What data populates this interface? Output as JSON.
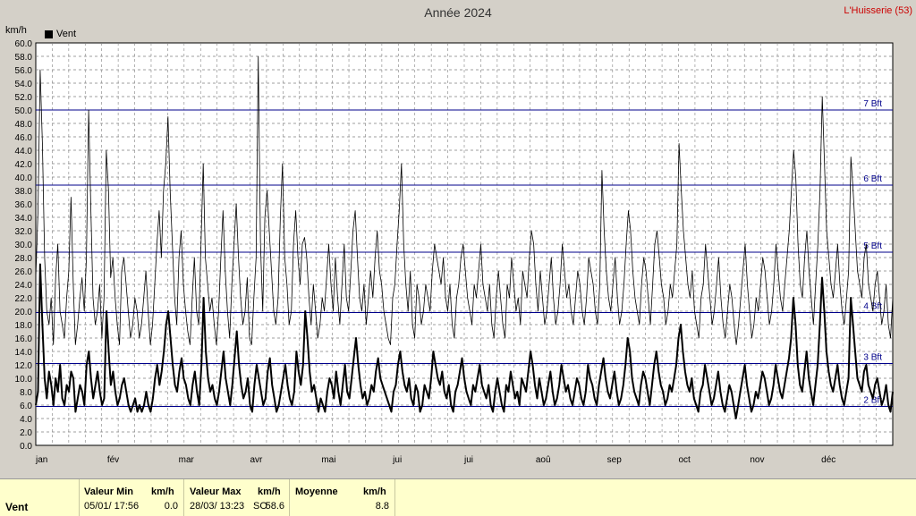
{
  "page": {
    "title": "Année 2024",
    "station": "L'Huisserie (53)",
    "legend_label": "Vent"
  },
  "chart_data": {
    "type": "line",
    "title": "Année 2024",
    "ylabel": "km/h",
    "ylim": [
      0,
      60
    ],
    "y_ticks": [
      "0.0",
      "2.0",
      "4.0",
      "6.0",
      "8.0",
      "10.0",
      "12.0",
      "14.0",
      "16.0",
      "18.0",
      "20.0",
      "22.0",
      "24.0",
      "26.0",
      "28.0",
      "30.0",
      "32.0",
      "34.0",
      "36.0",
      "38.0",
      "40.0",
      "42.0",
      "44.0",
      "46.0",
      "48.0",
      "50.0",
      "52.0",
      "54.0",
      "56.0",
      "58.0",
      "60.0"
    ],
    "month_labels": [
      "jan",
      "fév",
      "mar",
      "avr",
      "mai",
      "jui",
      "jui",
      "aoû",
      "sep",
      "oct",
      "nov",
      "déc"
    ],
    "grid": true,
    "beaufort_lines": [
      {
        "label": "2 Bft",
        "value": 5.8
      },
      {
        "label": "3 Bft",
        "value": 12.2
      },
      {
        "label": "4 Bft",
        "value": 19.8
      },
      {
        "label": "5 Bft",
        "value": 28.8
      },
      {
        "label": "6 Bft",
        "value": 38.8
      },
      {
        "label": "7 Bft",
        "value": 50.0
      }
    ],
    "colors": {
      "plot_bg": "#ffffff",
      "grid": "#808080",
      "beaufort": "#00008b",
      "series": "#000000"
    },
    "series": [
      {
        "name": "Vent",
        "values": [
          6,
          8,
          27,
          18,
          10,
          7,
          11,
          9,
          6,
          10,
          8,
          12,
          7,
          6,
          9,
          8,
          11,
          10,
          5,
          7,
          9,
          8,
          6,
          12,
          14,
          10,
          7,
          9,
          11,
          8,
          6,
          7,
          20,
          14,
          9,
          11,
          8,
          6,
          7,
          9,
          10,
          8,
          6,
          5,
          6,
          7,
          5,
          6,
          5,
          6,
          8,
          6,
          5,
          7,
          10,
          12,
          9,
          11,
          14,
          18,
          20,
          16,
          12,
          9,
          8,
          11,
          13,
          10,
          9,
          7,
          6,
          9,
          11,
          8,
          6,
          12,
          22,
          14,
          10,
          8,
          9,
          7,
          6,
          8,
          11,
          14,
          10,
          8,
          6,
          9,
          13,
          17,
          12,
          9,
          7,
          8,
          10,
          6,
          5,
          9,
          12,
          10,
          8,
          6,
          7,
          11,
          13,
          9,
          7,
          5,
          6,
          8,
          10,
          12,
          9,
          7,
          6,
          8,
          14,
          11,
          9,
          12,
          20,
          16,
          11,
          8,
          9,
          7,
          5,
          7,
          6,
          5,
          8,
          10,
          9,
          7,
          11,
          8,
          6,
          9,
          12,
          8,
          7,
          10,
          13,
          16,
          12,
          9,
          7,
          8,
          6,
          7,
          9,
          8,
          11,
          13,
          10,
          9,
          8,
          7,
          6,
          5,
          8,
          9,
          12,
          14,
          11,
          9,
          8,
          10,
          7,
          6,
          9,
          8,
          5,
          6,
          9,
          8,
          7,
          10,
          14,
          12,
          10,
          9,
          11,
          8,
          7,
          9,
          6,
          5,
          8,
          9,
          11,
          13,
          10,
          8,
          7,
          6,
          9,
          8,
          10,
          12,
          9,
          8,
          7,
          9,
          6,
          5,
          8,
          10,
          8,
          6,
          5,
          9,
          8,
          11,
          9,
          7,
          8,
          6,
          10,
          9,
          8,
          11,
          14,
          12,
          9,
          7,
          10,
          8,
          6,
          7,
          9,
          11,
          8,
          6,
          7,
          9,
          12,
          10,
          8,
          9,
          7,
          6,
          8,
          10,
          9,
          7,
          6,
          8,
          12,
          10,
          9,
          7,
          6,
          9,
          11,
          13,
          10,
          8,
          7,
          9,
          11,
          8,
          6,
          7,
          9,
          12,
          16,
          14,
          10,
          8,
          7,
          6,
          9,
          11,
          10,
          8,
          6,
          9,
          12,
          14,
          11,
          9,
          8,
          6,
          7,
          9,
          8,
          10,
          12,
          16,
          18,
          14,
          11,
          9,
          8,
          10,
          7,
          6,
          5,
          8,
          9,
          12,
          10,
          8,
          6,
          7,
          9,
          11,
          8,
          6,
          5,
          7,
          9,
          8,
          6,
          4,
          6,
          8,
          10,
          12,
          9,
          7,
          5,
          6,
          8,
          7,
          9,
          11,
          10,
          8,
          6,
          7,
          9,
          12,
          10,
          8,
          7,
          9,
          11,
          13,
          16,
          22,
          18,
          12,
          9,
          8,
          11,
          14,
          10,
          8,
          6,
          9,
          12,
          18,
          25,
          20,
          14,
          11,
          9,
          8,
          10,
          12,
          9,
          7,
          6,
          8,
          10,
          22,
          18,
          14,
          10,
          9,
          8,
          11,
          12,
          9,
          8,
          7,
          9,
          10,
          8,
          6,
          7,
          9,
          6,
          5,
          8
        ]
      }
    ],
    "peak_series": [
      {
        "name": "",
        "values": [
          25,
          35,
          56,
          45,
          28,
          20,
          18,
          22,
          15,
          25,
          30,
          20,
          18,
          16,
          22,
          26,
          37,
          24,
          15,
          18,
          22,
          25,
          20,
          28,
          50,
          35,
          22,
          18,
          20,
          24,
          16,
          22,
          44,
          38,
          25,
          28,
          22,
          18,
          15,
          26,
          28,
          24,
          20,
          16,
          18,
          22,
          20,
          16,
          18,
          22,
          26,
          20,
          15,
          18,
          24,
          30,
          35,
          28,
          38,
          42,
          49,
          38,
          30,
          22,
          18,
          28,
          32,
          24,
          20,
          17,
          15,
          22,
          28,
          20,
          18,
          30,
          42,
          28,
          24,
          20,
          22,
          18,
          15,
          20,
          28,
          35,
          26,
          20,
          16,
          24,
          30,
          36,
          28,
          22,
          18,
          20,
          25,
          16,
          15,
          22,
          28,
          58,
          30,
          20,
          34,
          38,
          32,
          26,
          20,
          18,
          22,
          34,
          42,
          28,
          24,
          18,
          20,
          30,
          35,
          28,
          24,
          30,
          31,
          28,
          22,
          18,
          24,
          20,
          16,
          18,
          22,
          20,
          25,
          30,
          24,
          20,
          28,
          22,
          18,
          24,
          30,
          22,
          20,
          26,
          32,
          35,
          28,
          22,
          20,
          24,
          18,
          22,
          26,
          22,
          28,
          32,
          26,
          24,
          20,
          18,
          16,
          15,
          22,
          24,
          30,
          35,
          42,
          30,
          24,
          20,
          26,
          18,
          16,
          24,
          22,
          18,
          20,
          24,
          22,
          20,
          26,
          30,
          28,
          26,
          24,
          28,
          22,
          20,
          24,
          18,
          16,
          22,
          24,
          28,
          30,
          26,
          22,
          20,
          18,
          24,
          22,
          26,
          30,
          24,
          22,
          20,
          24,
          18,
          16,
          22,
          26,
          22,
          18,
          16,
          24,
          22,
          28,
          24,
          20,
          22,
          18,
          26,
          24,
          22,
          28,
          32,
          30,
          24,
          20,
          26,
          22,
          18,
          20,
          24,
          28,
          22,
          18,
          20,
          24,
          30,
          26,
          22,
          24,
          20,
          18,
          22,
          26,
          24,
          20,
          18,
          22,
          28,
          26,
          24,
          20,
          18,
          24,
          41,
          32,
          26,
          22,
          20,
          24,
          28,
          22,
          18,
          20,
          24,
          30,
          35,
          32,
          26,
          22,
          20,
          18,
          24,
          28,
          26,
          22,
          18,
          24,
          30,
          32,
          28,
          24,
          22,
          18,
          20,
          24,
          22,
          26,
          30,
          45,
          38,
          32,
          28,
          24,
          22,
          26,
          20,
          18,
          16,
          22,
          24,
          30,
          26,
          22,
          18,
          20,
          24,
          28,
          22,
          18,
          16,
          20,
          24,
          22,
          18,
          15,
          18,
          22,
          26,
          30,
          24,
          20,
          16,
          18,
          22,
          20,
          24,
          28,
          26,
          22,
          18,
          20,
          24,
          30,
          26,
          22,
          20,
          24,
          28,
          32,
          38,
          44,
          40,
          30,
          24,
          22,
          28,
          32,
          26,
          22,
          18,
          24,
          30,
          38,
          52,
          42,
          32,
          28,
          24,
          22,
          26,
          30,
          24,
          20,
          18,
          22,
          26,
          43,
          38,
          32,
          26,
          24,
          22,
          28,
          30,
          24,
          22,
          20,
          24,
          26,
          22,
          18,
          20,
          24,
          18,
          16,
          22
        ]
      }
    ]
  },
  "footer": {
    "series_name": "Vent",
    "min_header": "Valeur Min",
    "min_unit": "km/h",
    "min_time": "05/01/  17:56",
    "min_value": "0.0",
    "max_header": "Valeur Max",
    "max_unit": "km/h",
    "max_time": "28/03/  13:23",
    "max_dir": "SO",
    "max_value": "58.6",
    "avg_header": "Moyenne",
    "avg_unit": "km/h",
    "avg_value": "8.8"
  }
}
